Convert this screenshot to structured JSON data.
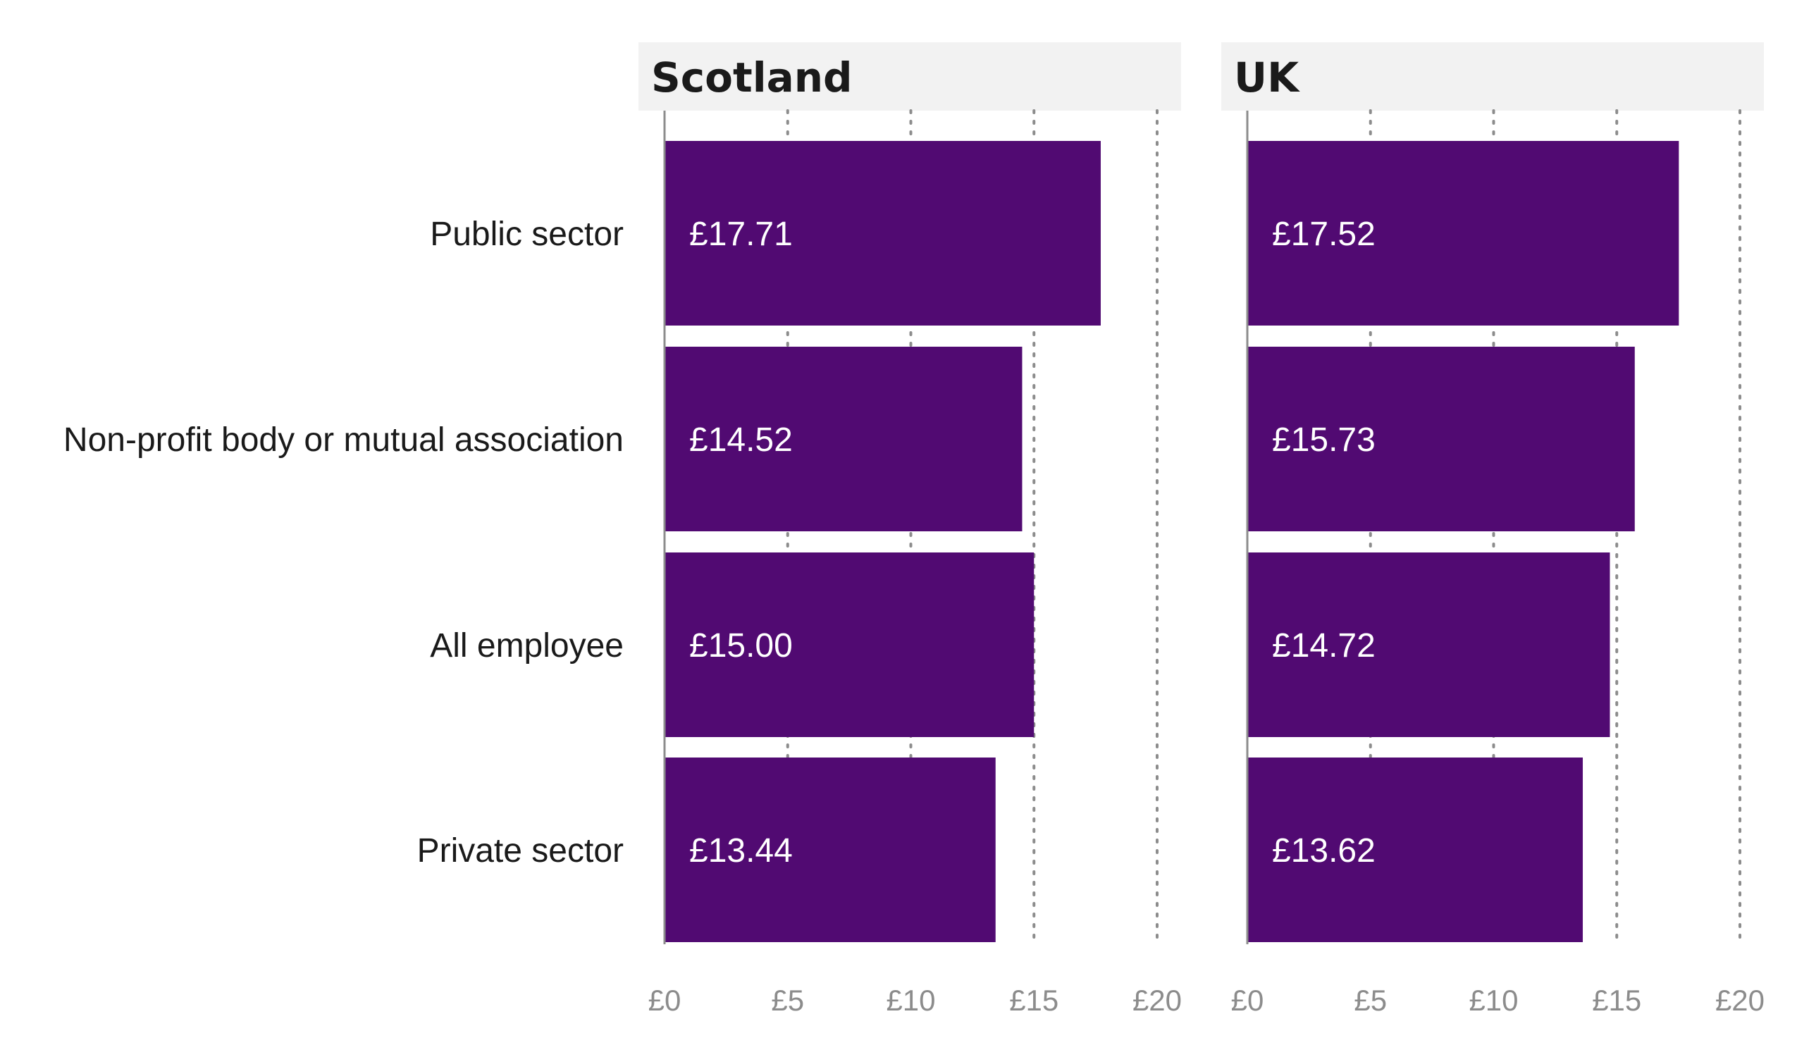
{
  "chart_data": {
    "type": "bar",
    "orientation": "horizontal",
    "categories": [
      "Public sector",
      "Non-profit body or mutual association",
      "All employee",
      "Private sector"
    ],
    "xlim": [
      0,
      20
    ],
    "xticks": [
      0,
      5,
      10,
      15,
      20
    ],
    "xtick_labels": [
      "£0",
      "£5",
      "£10",
      "£15",
      "£20"
    ],
    "grid": "vertical dotted",
    "panels": [
      {
        "title": "Scotland",
        "values": [
          17.71,
          14.52,
          15.0,
          13.44
        ],
        "value_labels": [
          "£17.71",
          "£14.52",
          "£15.00",
          "£13.44"
        ]
      },
      {
        "title": "UK",
        "values": [
          17.52,
          15.73,
          14.72,
          13.62
        ],
        "value_labels": [
          "£17.52",
          "£15.73",
          "£14.72",
          "£13.62"
        ]
      }
    ],
    "colors": {
      "bar": "#510a72",
      "panel_header_bg": "#f2f2f2",
      "grid": "#8c8c8c",
      "axis": "#8c8c8c",
      "tick_text": "#8c8c8c",
      "label_text": "#1a1a1a"
    }
  }
}
